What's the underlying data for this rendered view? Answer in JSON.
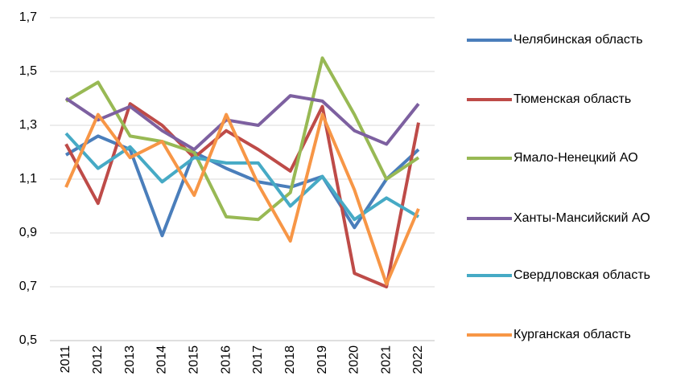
{
  "chart_data": {
    "type": "line",
    "categories": [
      "2011",
      "2012",
      "2013",
      "2014",
      "2015",
      "2016",
      "2017",
      "2018",
      "2019",
      "2020",
      "2021",
      "2022"
    ],
    "series": [
      {
        "name": "Челябинская область",
        "color": "#4a7ebb",
        "values": [
          1.19,
          1.26,
          1.21,
          0.89,
          1.2,
          1.14,
          1.09,
          1.07,
          1.11,
          0.92,
          1.1,
          1.21
        ]
      },
      {
        "name": "Тюменская область",
        "color": "#be4b48",
        "values": [
          1.23,
          1.01,
          1.38,
          1.3,
          1.18,
          1.28,
          1.21,
          1.13,
          1.37,
          0.75,
          0.7,
          1.31
        ]
      },
      {
        "name": "Ямало-Ненецкий АО",
        "color": "#98b954",
        "values": [
          1.39,
          1.46,
          1.26,
          1.24,
          1.2,
          0.96,
          0.95,
          1.05,
          1.55,
          1.34,
          1.1,
          1.18
        ]
      },
      {
        "name": "Ханты-Мансийский АО",
        "color": "#7d60a0",
        "values": [
          1.4,
          1.32,
          1.37,
          1.28,
          1.21,
          1.32,
          1.3,
          1.41,
          1.39,
          1.28,
          1.23,
          1.38
        ]
      },
      {
        "name": "Свердловская область",
        "color": "#46aac5",
        "values": [
          1.27,
          1.14,
          1.22,
          1.09,
          1.18,
          1.16,
          1.16,
          1.0,
          1.11,
          0.95,
          1.03,
          0.96
        ]
      },
      {
        "name": "Курганская область",
        "color": "#f79646",
        "values": [
          1.07,
          1.34,
          1.18,
          1.24,
          1.04,
          1.34,
          1.08,
          0.87,
          1.34,
          1.06,
          0.71,
          0.99
        ]
      }
    ],
    "ylim": [
      0.5,
      1.7
    ],
    "yticks": [
      {
        "value": 0.5,
        "label": "0,5"
      },
      {
        "value": 0.7,
        "label": "0,7"
      },
      {
        "value": 0.9,
        "label": "0,9"
      },
      {
        "value": 1.1,
        "label": "1,1"
      },
      {
        "value": 1.3,
        "label": "1,3"
      },
      {
        "value": 1.5,
        "label": "1,5"
      },
      {
        "value": 1.7,
        "label": "1,7"
      }
    ],
    "grid": true,
    "legend": "right"
  }
}
